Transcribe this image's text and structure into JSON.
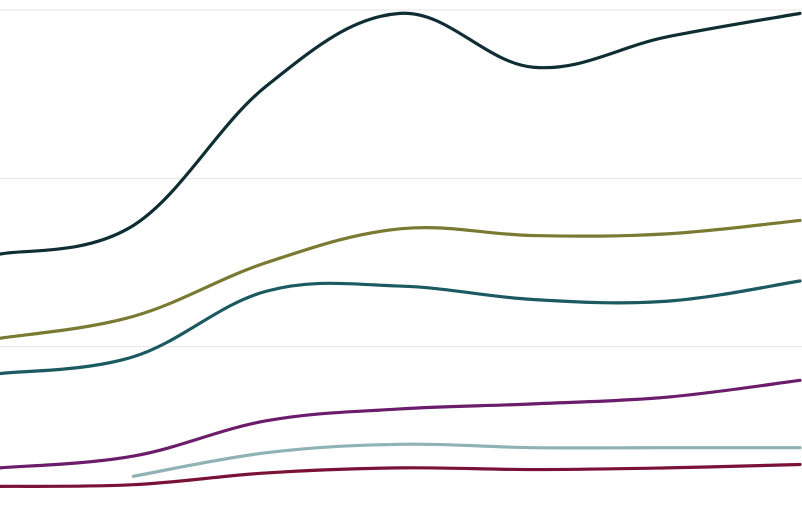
{
  "chart_data": {
    "type": "line",
    "grid": true,
    "legend": "none",
    "x": [
      0,
      1,
      2,
      3,
      4,
      5,
      6
    ],
    "xlim": [
      0,
      6
    ],
    "ylim": [
      0,
      300
    ],
    "gridlines": [
      100,
      200,
      300
    ],
    "series": [
      {
        "color": "#0f2e33",
        "values": [
          155,
          172,
          255,
          298,
          266,
          284,
          298
        ]
      },
      {
        "color": "#7a7a33",
        "values": [
          105,
          118,
          150,
          170,
          166,
          167,
          175
        ]
      },
      {
        "color": "#1a5a60",
        "values": [
          84,
          94,
          133,
          136,
          128,
          127,
          139
        ]
      },
      {
        "color": "#6b1d6b",
        "values": [
          28,
          35,
          56,
          63,
          66,
          70,
          80
        ]
      },
      {
        "color": "#8fb3b5",
        "start_index": 1,
        "values": [
          null,
          23,
          37,
          42,
          40,
          40,
          40
        ]
      },
      {
        "color": "#7a1238",
        "values": [
          17,
          18,
          25,
          28,
          27,
          28,
          30
        ]
      }
    ]
  }
}
